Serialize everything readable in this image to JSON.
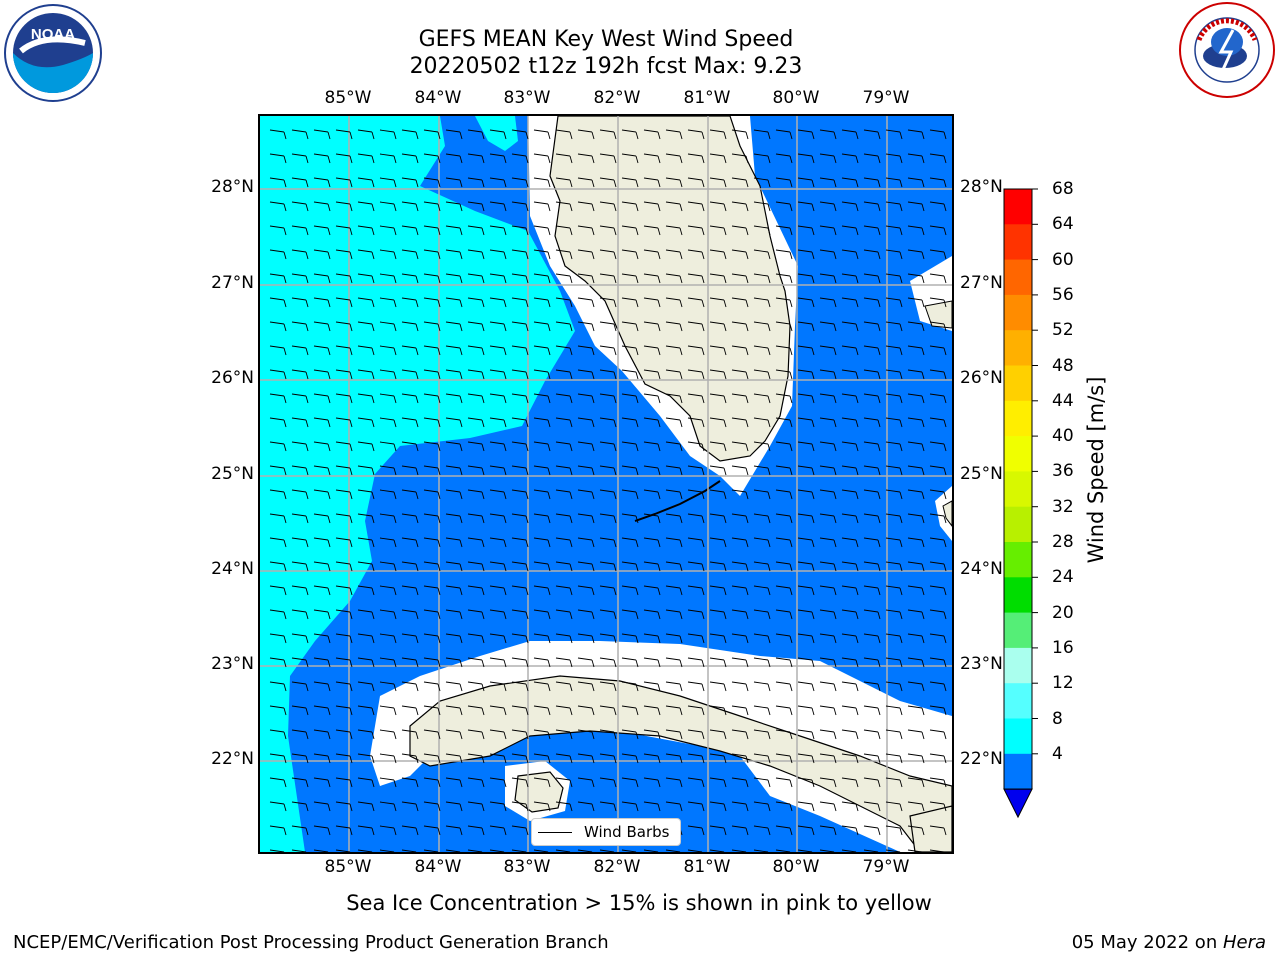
{
  "title": {
    "line1": "GEFS MEAN Key West Wind Speed",
    "line2": "20220502 t12z 192h fcst   Max: 9.23"
  },
  "map": {
    "lon_labels": [
      "85°W",
      "84°W",
      "83°W",
      "82°W",
      "81°W",
      "80°W",
      "79°W"
    ],
    "lat_labels": [
      "28°N",
      "27°N",
      "26°N",
      "25°N",
      "24°N",
      "23°N",
      "22°N"
    ],
    "land_color": "#EEEEDD",
    "coastline_color": "#000000",
    "grid_color": "#B0B0B0",
    "legend_label": "Wind Barbs",
    "wind_direction": "easterly"
  },
  "colorbar": {
    "label": "Wind Speed [m/s]",
    "ticks": [
      "68",
      "64",
      "60",
      "56",
      "52",
      "48",
      "44",
      "40",
      "36",
      "32",
      "28",
      "24",
      "20",
      "16",
      "12",
      "8",
      "4"
    ],
    "colors": [
      "#FF0000",
      "#FF3300",
      "#FF6600",
      "#FF8C00",
      "#FFB000",
      "#FFD000",
      "#FFEE00",
      "#F0FF00",
      "#D8F800",
      "#B8F000",
      "#66EE00",
      "#00DD00",
      "#55EE77",
      "#AAFFEE",
      "#55FFFF",
      "#00FFFF",
      "#0077FF"
    ],
    "under_color": "#0000EE"
  },
  "subtitle": "Sea Ice Concentration > 15% is shown in pink to yellow",
  "footer": {
    "left": "NCEP/EMC/Verification Post Processing Product Generation Branch",
    "right_date": "05 May 2022 on ",
    "right_host": "Hera"
  },
  "logos": {
    "noaa_text": "NOAA",
    "noaa_ring_text": "NATIONAL OCEANIC AND ATMOSPHERIC ADMINISTRATION · U.S. DEPARTMENT OF COMMERCE",
    "nws_ring_text": "NATIONAL WEATHER SERVICE"
  }
}
